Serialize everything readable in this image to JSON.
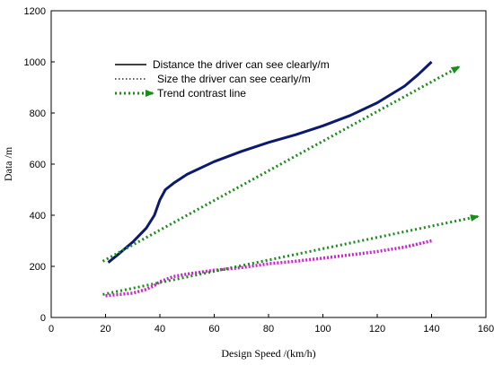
{
  "chart_data": {
    "type": "line",
    "title": "",
    "xlabel": "Design Speed /(km/h)",
    "ylabel": "Data /m",
    "xlim": [
      0,
      160
    ],
    "ylim": [
      0,
      1200
    ],
    "xticks": [
      "0",
      "20",
      "40",
      "60",
      "80",
      "100",
      "120",
      "140",
      "160"
    ],
    "yticks": [
      "0",
      "200",
      "400",
      "600",
      "800",
      "1000",
      "1200"
    ],
    "grid": false,
    "legend_position": "top-left",
    "series": [
      {
        "name": "Distance the driver can see clearly/m",
        "style": "solid",
        "color": "#0b1a6e",
        "points": [
          [
            21,
            215
          ],
          [
            25,
            250
          ],
          [
            30,
            295
          ],
          [
            35,
            350
          ],
          [
            38,
            400
          ],
          [
            40,
            460
          ],
          [
            42,
            500
          ],
          [
            45,
            525
          ],
          [
            50,
            560
          ],
          [
            60,
            610
          ],
          [
            70,
            650
          ],
          [
            80,
            685
          ],
          [
            90,
            715
          ],
          [
            100,
            750
          ],
          [
            110,
            790
          ],
          [
            120,
            840
          ],
          [
            130,
            905
          ],
          [
            135,
            950
          ],
          [
            140,
            1000
          ]
        ]
      },
      {
        "name": "Size the driver can see cearly/m",
        "style": "dotted",
        "color": "#cc22cc",
        "points": [
          [
            20,
            85
          ],
          [
            25,
            90
          ],
          [
            30,
            95
          ],
          [
            35,
            110
          ],
          [
            38,
            125
          ],
          [
            40,
            140
          ],
          [
            45,
            160
          ],
          [
            50,
            170
          ],
          [
            60,
            185
          ],
          [
            70,
            195
          ],
          [
            80,
            210
          ],
          [
            90,
            220
          ],
          [
            100,
            232
          ],
          [
            110,
            245
          ],
          [
            120,
            258
          ],
          [
            130,
            275
          ],
          [
            140,
            300
          ]
        ]
      },
      {
        "name": "Trend contrast line",
        "style": "dotted-arrow",
        "color": "#1a8c1a",
        "segments": [
          [
            [
              19,
              220
            ],
            [
              150,
              980
            ]
          ],
          [
            [
              19,
              90
            ],
            [
              157,
              395
            ]
          ]
        ]
      }
    ]
  }
}
